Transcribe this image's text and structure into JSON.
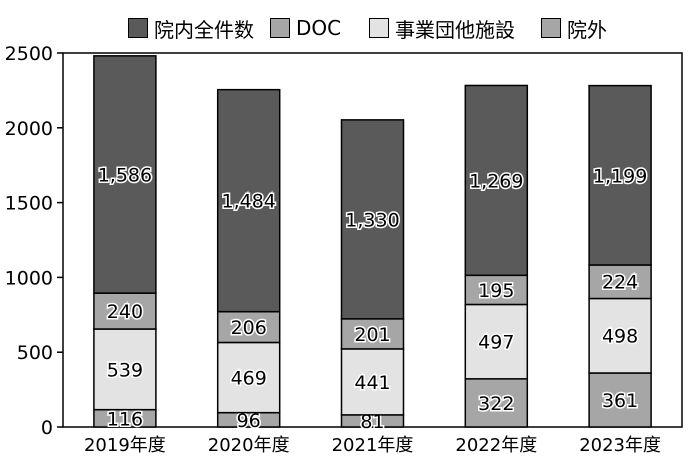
{
  "chart_data": {
    "type": "bar",
    "stacked": true,
    "categories": [
      "2019年度",
      "2020年度",
      "2021年度",
      "2022年度",
      "2023年度"
    ],
    "series": [
      {
        "name": "院外",
        "color": "#a6a6a6",
        "values": [
          116,
          96,
          81,
          322,
          361
        ],
        "labels": [
          "116",
          "96",
          "81",
          "322",
          "361"
        ]
      },
      {
        "name": "事業団他施設",
        "color": "#e3e3e3",
        "values": [
          539,
          469,
          441,
          497,
          498
        ],
        "labels": [
          "539",
          "469",
          "441",
          "497",
          "498"
        ]
      },
      {
        "name": "DOC",
        "color": "#a6a6a6",
        "values": [
          240,
          206,
          201,
          195,
          224
        ],
        "labels": [
          "240",
          "206",
          "201",
          "195",
          "224"
        ]
      },
      {
        "name": "院内全件数",
        "color": "#5a5a5a",
        "values": [
          1586,
          1484,
          1330,
          1269,
          1199
        ],
        "labels": [
          "1,586",
          "1,484",
          "1,330",
          "1,269",
          "1,199"
        ]
      }
    ],
    "legend_order": [
      "院内全件数",
      "DOC",
      "事業団他施設",
      "院外"
    ],
    "ylim": [
      0,
      2500
    ],
    "yticks": [
      0,
      500,
      1000,
      1500,
      2000,
      2500
    ],
    "ytick_labels": [
      "0",
      "500",
      "1000",
      "1500",
      "2000",
      "2500"
    ],
    "grid": false,
    "legend_position": "top",
    "title": "",
    "xlabel": "",
    "ylabel": ""
  }
}
